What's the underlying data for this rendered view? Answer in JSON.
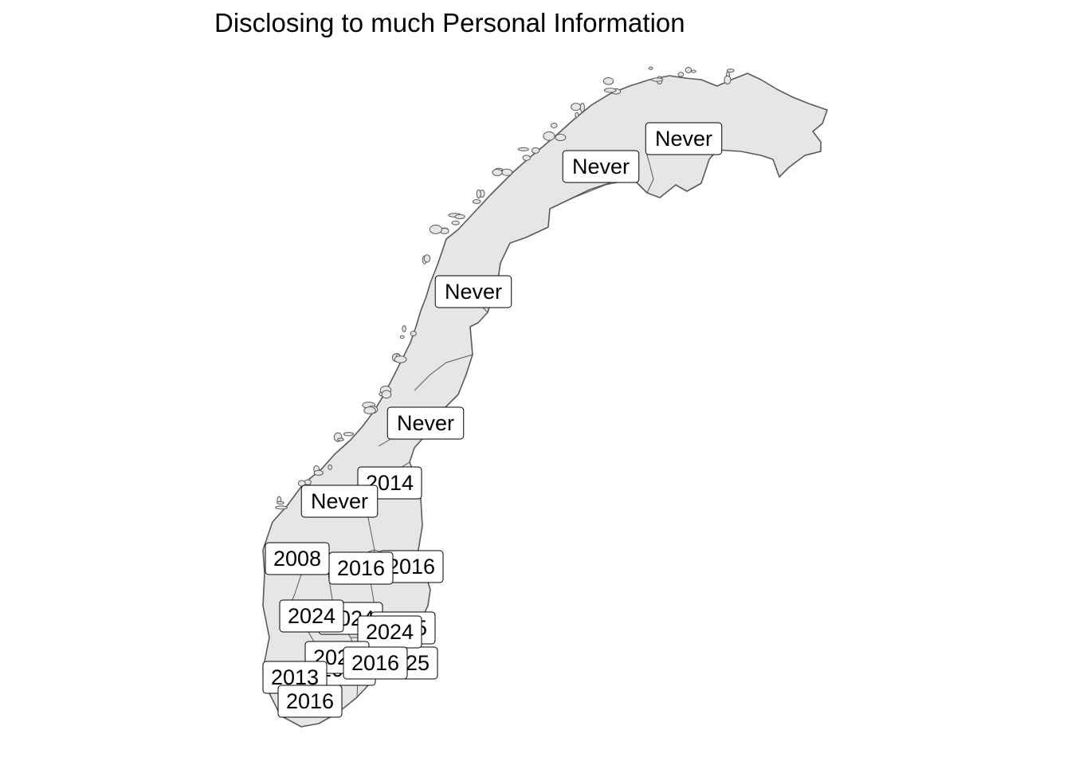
{
  "title": "Disclosing to much Personal Information",
  "colors": {
    "land_fill": "#e6e6e6",
    "border": "#5a5a5a",
    "label_background": "#ffffff",
    "label_border": "#000000",
    "text": "#000000"
  },
  "map": {
    "region": "Norway (counties)",
    "labels": [
      "Never",
      "Never",
      "Never",
      "Never",
      "2014",
      "Never",
      "2008",
      "2016",
      "2016",
      "2024",
      "2024",
      "2025",
      "2025",
      "2016",
      "2024",
      "2025",
      "2013",
      "2016",
      "2016"
    ]
  }
}
